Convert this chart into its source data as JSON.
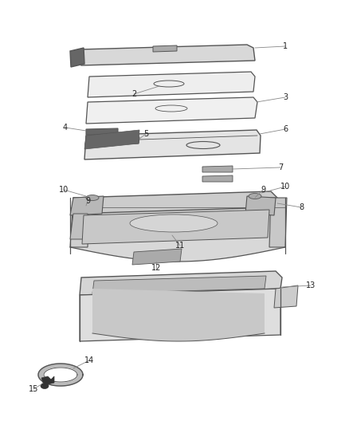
{
  "bg_color": "#ffffff",
  "line_color": "#555555",
  "dark_color": "#333333",
  "text_color": "#222222",
  "fill_light": "#f0f0f0",
  "fill_mid": "#d8d8d8",
  "fill_dark": "#aaaaaa",
  "fill_darkest": "#666666",
  "figsize": [
    4.38,
    5.33
  ],
  "dpi": 100
}
